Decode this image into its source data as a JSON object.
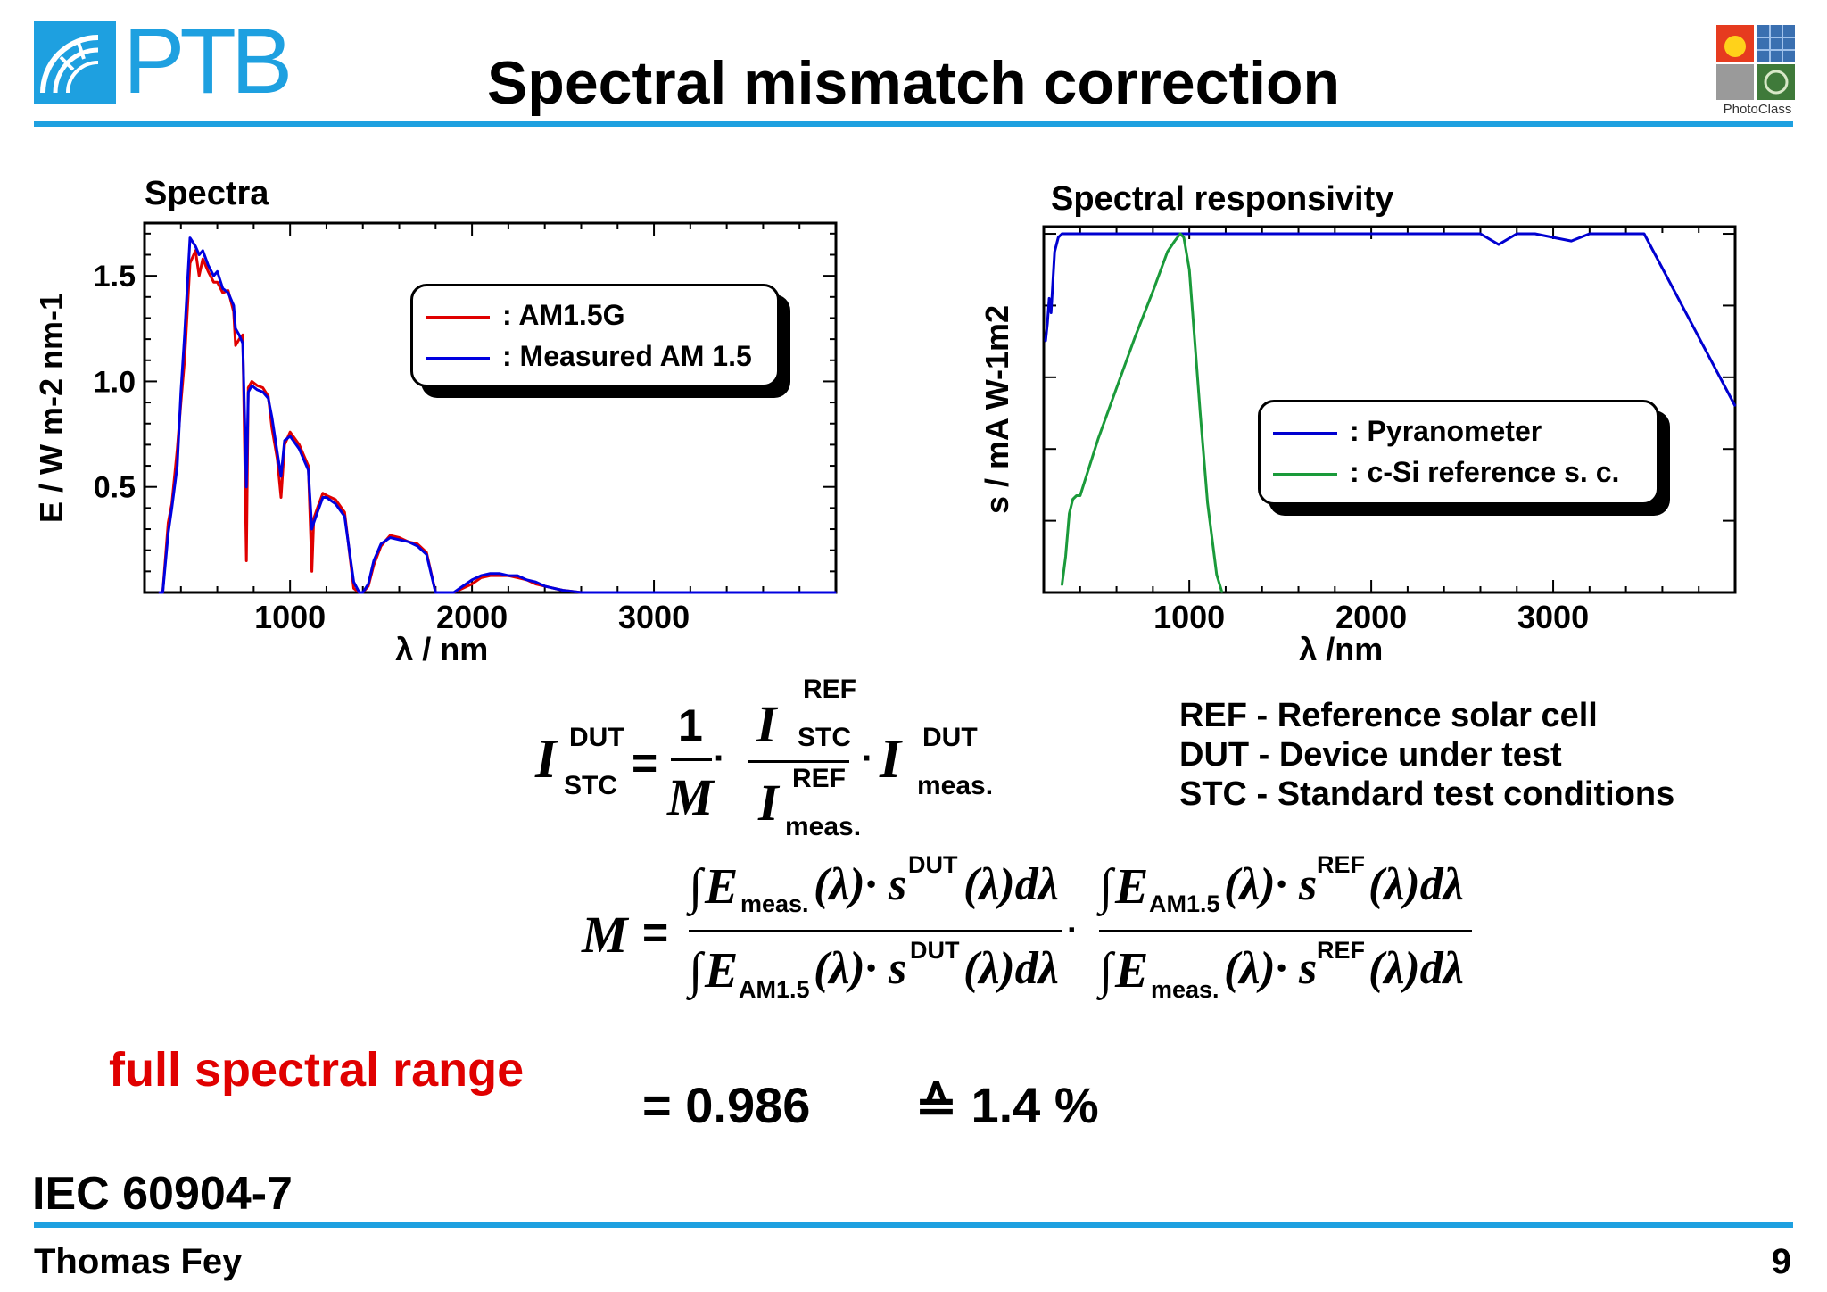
{
  "header": {
    "logo_left_text": "PTB",
    "title": "Spectral mismatch correction",
    "logo_right_text": "PhotoClass",
    "accent_color": "#1ea0e0"
  },
  "chart_data": [
    {
      "type": "line",
      "title": "Spectra",
      "xlabel": "λ / nm",
      "ylabel": "E / W m-2 nm-1",
      "xlim": [
        200,
        4000
      ],
      "ylim": [
        0,
        1.75
      ],
      "x_ticks": [
        "1000",
        "2000",
        "3000"
      ],
      "y_ticks": [
        "0.5",
        "1.0",
        "1.5"
      ],
      "legend_position": "top-right",
      "grid": false,
      "series": [
        {
          "name": ": AM1.5G",
          "color": "#e00000",
          "x": [
            280,
            300,
            330,
            350,
            380,
            400,
            420,
            450,
            480,
            500,
            520,
            550,
            580,
            600,
            630,
            660,
            690,
            700,
            720,
            740,
            760,
            770,
            790,
            820,
            850,
            880,
            900,
            930,
            950,
            970,
            1000,
            1050,
            1100,
            1120,
            1130,
            1150,
            1180,
            1200,
            1250,
            1300,
            1350,
            1380,
            1400,
            1430,
            1460,
            1500,
            1550,
            1600,
            1650,
            1700,
            1750,
            1800,
            1850,
            1900,
            1950,
            2000,
            2050,
            2100,
            2150,
            2200,
            2250,
            2300,
            2350,
            2400,
            2450,
            2500,
            2600,
            3000,
            4000
          ],
          "y": [
            0.0,
            0.0,
            0.33,
            0.42,
            0.68,
            0.9,
            1.1,
            1.56,
            1.62,
            1.5,
            1.58,
            1.52,
            1.47,
            1.47,
            1.42,
            1.43,
            1.33,
            1.17,
            1.2,
            1.22,
            0.15,
            0.97,
            1.0,
            0.98,
            0.97,
            0.93,
            0.78,
            0.63,
            0.45,
            0.7,
            0.76,
            0.7,
            0.6,
            0.1,
            0.35,
            0.4,
            0.47,
            0.46,
            0.44,
            0.38,
            0.02,
            0.0,
            0.0,
            0.03,
            0.13,
            0.22,
            0.27,
            0.26,
            0.24,
            0.23,
            0.19,
            0.0,
            0.0,
            0.0,
            0.02,
            0.04,
            0.07,
            0.08,
            0.08,
            0.08,
            0.07,
            0.06,
            0.04,
            0.03,
            0.02,
            0.01,
            0.0,
            0.0,
            0.0
          ]
        },
        {
          "name": ": Measured AM 1.5",
          "color": "#0000e0",
          "x": [
            280,
            300,
            330,
            350,
            380,
            400,
            420,
            450,
            480,
            500,
            520,
            550,
            580,
            600,
            630,
            660,
            690,
            700,
            720,
            740,
            760,
            770,
            790,
            820,
            850,
            880,
            900,
            930,
            950,
            970,
            1000,
            1050,
            1100,
            1120,
            1130,
            1150,
            1180,
            1200,
            1250,
            1300,
            1350,
            1380,
            1400,
            1430,
            1460,
            1500,
            1550,
            1600,
            1650,
            1700,
            1750,
            1800,
            1850,
            1900,
            1950,
            2000,
            2050,
            2100,
            2150,
            2200,
            2250,
            2300,
            2350,
            2400,
            2450,
            2500,
            2600,
            3000,
            4000
          ],
          "y": [
            0.0,
            0.0,
            0.28,
            0.4,
            0.6,
            0.95,
            1.22,
            1.68,
            1.64,
            1.6,
            1.62,
            1.55,
            1.5,
            1.52,
            1.44,
            1.42,
            1.36,
            1.25,
            1.22,
            1.18,
            0.5,
            0.95,
            0.98,
            0.96,
            0.95,
            0.92,
            0.83,
            0.66,
            0.55,
            0.72,
            0.74,
            0.68,
            0.58,
            0.3,
            0.33,
            0.38,
            0.45,
            0.45,
            0.42,
            0.36,
            0.05,
            0.0,
            0.0,
            0.04,
            0.15,
            0.23,
            0.26,
            0.25,
            0.24,
            0.22,
            0.18,
            0.0,
            0.0,
            0.0,
            0.03,
            0.06,
            0.08,
            0.09,
            0.09,
            0.08,
            0.08,
            0.06,
            0.05,
            0.03,
            0.02,
            0.01,
            0.0,
            0.0,
            0.0
          ]
        }
      ]
    },
    {
      "type": "line",
      "title": "Spectral responsivity",
      "xlabel": "λ /nm",
      "ylabel": "s / mA W-1m2",
      "xlim": [
        200,
        4000
      ],
      "ylim": [
        0,
        1.02
      ],
      "x_ticks": [
        "1000",
        "2000",
        "3000"
      ],
      "y_ticks": [],
      "legend_position": "center-right",
      "grid": false,
      "series": [
        {
          "name": ": Pyranometer",
          "color": "#0000d0",
          "x": [
            210,
            220,
            230,
            240,
            260,
            280,
            300,
            350,
            500,
            1000,
            2000,
            2600,
            2700,
            2800,
            2900,
            3000,
            3100,
            3200,
            3300,
            3400,
            3500,
            4000
          ],
          "y": [
            0.7,
            0.75,
            0.82,
            0.78,
            0.95,
            0.99,
            1.0,
            1.0,
            1.0,
            1.0,
            1.0,
            1.0,
            0.97,
            1.0,
            1.0,
            0.99,
            0.98,
            1.0,
            1.0,
            1.0,
            1.0,
            0.52
          ]
        },
        {
          "name": ": c-Si reference s. c.",
          "color": "#1a9a3a",
          "x": [
            300,
            320,
            340,
            360,
            380,
            400,
            450,
            500,
            600,
            700,
            800,
            880,
            920,
            950,
            970,
            1000,
            1030,
            1060,
            1100,
            1150,
            1180
          ],
          "y": [
            0.02,
            0.1,
            0.22,
            0.26,
            0.27,
            0.27,
            0.35,
            0.43,
            0.57,
            0.71,
            0.84,
            0.95,
            0.98,
            1.0,
            0.99,
            0.9,
            0.7,
            0.5,
            0.25,
            0.05,
            0.0
          ]
        }
      ]
    }
  ],
  "formula": {
    "I_symbol": "I",
    "M_symbol": "M",
    "one": "1",
    "sup_dut": "DUT",
    "sub_stc": "STC",
    "sup_ref": "REF",
    "sub_meas": "meas.",
    "equals": "=",
    "dot": "·",
    "E": "E",
    "s": "s",
    "lambda_d": "(λ)dλ",
    "lambda_dot": "(λ)·",
    "integral": "∫",
    "sub_am15": "AM1.5"
  },
  "definitions": [
    "REF - Reference solar cell",
    "DUT - Device under test",
    "STC - Standard test conditions"
  ],
  "highlight_label": "full spectral range",
  "result_value": "= 0.986",
  "result_percent": "≙ 1.4 %",
  "standard": "IEC 60904-7",
  "footer": {
    "author": "Thomas Fey",
    "page": "9"
  }
}
